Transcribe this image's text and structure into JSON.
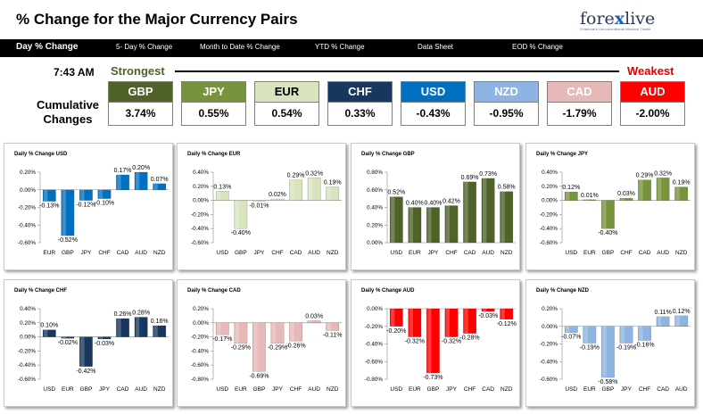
{
  "header": {
    "title": "% Change for the Major Currency Pairs",
    "logo_brand_pre": "fore",
    "logo_brand_x": "x",
    "logo_brand_post": "live",
    "logo_tag": "Financial's Unconventional Wisdom Trader"
  },
  "nav": [
    {
      "label": "Day % Change",
      "active": true
    },
    {
      "label": "5- Day % Change",
      "active": false
    },
    {
      "label": "Month to Date % Change",
      "active": false
    },
    {
      "label": "YTD % Change",
      "active": false
    },
    {
      "label": "Data Sheet",
      "active": false
    },
    {
      "label": "EOD % Change",
      "active": false
    }
  ],
  "summary": {
    "time": "7:43 AM",
    "strongest_label": "Strongest",
    "weakest_label": "Weakest",
    "cumulative_label_line1": "Cumulative",
    "cumulative_label_line2": "Changes",
    "currencies": [
      {
        "code": "GBP",
        "value": "3.74%",
        "bg": "#4f6228",
        "fg": "#ffffff"
      },
      {
        "code": "JPY",
        "value": "0.55%",
        "bg": "#77933c",
        "fg": "#ffffff"
      },
      {
        "code": "EUR",
        "value": "0.54%",
        "bg": "#d7e4bd",
        "fg": "#000000"
      },
      {
        "code": "CHF",
        "value": "0.33%",
        "bg": "#17375e",
        "fg": "#ffffff"
      },
      {
        "code": "USD",
        "value": "-0.43%",
        "bg": "#0070c0",
        "fg": "#ffffff"
      },
      {
        "code": "NZD",
        "value": "-0.95%",
        "bg": "#8db4e2",
        "fg": "#ffffff"
      },
      {
        "code": "CAD",
        "value": "-1.79%",
        "bg": "#e6b9b8",
        "fg": "#ffffff"
      },
      {
        "code": "AUD",
        "value": "-2.00%",
        "bg": "#ff0000",
        "fg": "#ffffff"
      }
    ]
  },
  "chart_data": [
    {
      "type": "bar",
      "title": "Daily % Change USD",
      "categories": [
        "EUR",
        "GBP",
        "JPY",
        "CHF",
        "CAD",
        "AUD",
        "NZD"
      ],
      "values": [
        -0.13,
        -0.52,
        -0.12,
        -0.1,
        0.17,
        0.2,
        0.07
      ],
      "labels": [
        "-0.13%",
        "-0.52%",
        "-0.12%",
        "-0.10%",
        "0.17%",
        "0.20%",
        "0.07%"
      ],
      "ylim": [
        -0.6,
        0.2
      ],
      "yticks": [
        "0.20%",
        "0.00%",
        "-0.20%",
        "-0.40%",
        "-0.60%"
      ],
      "colors": [
        "#0070c0",
        "#0070c0",
        "#0070c0",
        "#0070c0",
        "#0070c0",
        "#0070c0",
        "#0070c0"
      ]
    },
    {
      "type": "bar",
      "title": "Daily % Change EUR",
      "categories": [
        "USD",
        "GBP",
        "JPY",
        "CHF",
        "CAD",
        "AUD",
        "NZD"
      ],
      "values": [
        0.13,
        -0.4,
        -0.01,
        0.02,
        0.29,
        0.32,
        0.19
      ],
      "labels": [
        "0.13%",
        "-0.40%",
        "-0.01%",
        "0.02%",
        "0.29%",
        "0.32%",
        "0.19%"
      ],
      "ylim": [
        -0.6,
        0.4
      ],
      "yticks": [
        "0.40%",
        "0.20%",
        "0.00%",
        "-0.20%",
        "-0.40%",
        "-0.60%"
      ],
      "colors": [
        "#d7e4bd",
        "#d7e4bd",
        "#d7e4bd",
        "#d7e4bd",
        "#d7e4bd",
        "#d7e4bd",
        "#d7e4bd"
      ]
    },
    {
      "type": "bar",
      "title": "Daily % Change GBP",
      "categories": [
        "USD",
        "EUR",
        "JPY",
        "CHF",
        "CAD",
        "AUD",
        "NZD"
      ],
      "values": [
        0.52,
        0.4,
        0.4,
        0.42,
        0.69,
        0.73,
        0.58
      ],
      "labels": [
        "0.52%",
        "0.40%",
        "0.40%",
        "0.42%",
        "0.69%",
        "0.73%",
        "0.58%"
      ],
      "ylim": [
        0,
        0.8
      ],
      "yticks": [
        "0.80%",
        "0.60%",
        "0.40%",
        "0.20%",
        "0.00%"
      ],
      "colors": [
        "#4f6228",
        "#4f6228",
        "#4f6228",
        "#4f6228",
        "#4f6228",
        "#4f6228",
        "#4f6228"
      ]
    },
    {
      "type": "bar",
      "title": "Daily % Change JPY",
      "categories": [
        "USD",
        "EUR",
        "GBP",
        "CHF",
        "CAD",
        "AUD",
        "NZD"
      ],
      "values": [
        0.12,
        0.01,
        -0.4,
        0.03,
        0.29,
        0.32,
        0.19
      ],
      "labels": [
        "0.12%",
        "0.01%",
        "-0.40%",
        "0.03%",
        "0.29%",
        "0.32%",
        "0.19%"
      ],
      "ylim": [
        -0.6,
        0.4
      ],
      "yticks": [
        "0.40%",
        "0.20%",
        "0.00%",
        "-0.20%",
        "-0.40%",
        "-0.60%"
      ],
      "colors": [
        "#77933c",
        "#77933c",
        "#77933c",
        "#77933c",
        "#77933c",
        "#77933c",
        "#77933c"
      ]
    },
    {
      "type": "bar",
      "title": "Daily % Change CHF",
      "categories": [
        "USD",
        "EUR",
        "GBP",
        "JPY",
        "CAD",
        "AUD",
        "NZD"
      ],
      "values": [
        0.1,
        -0.02,
        -0.42,
        -0.03,
        0.26,
        0.28,
        0.16
      ],
      "labels": [
        "0.10%",
        "-0.02%",
        "-0.42%",
        "-0.03%",
        "0.26%",
        "0.28%",
        "0.16%"
      ],
      "ylim": [
        -0.6,
        0.4
      ],
      "yticks": [
        "0.40%",
        "0.20%",
        "0.00%",
        "-0.20%",
        "-0.40%",
        "-0.60%"
      ],
      "colors": [
        "#17375e",
        "#17375e",
        "#17375e",
        "#17375e",
        "#17375e",
        "#17375e",
        "#17375e"
      ]
    },
    {
      "type": "bar",
      "title": "Daily % Change CAD",
      "categories": [
        "USD",
        "EUR",
        "GBP",
        "JPY",
        "CHF",
        "AUD",
        "NZD"
      ],
      "values": [
        -0.17,
        -0.29,
        -0.69,
        -0.29,
        -0.26,
        0.03,
        -0.11
      ],
      "labels": [
        "-0.17%",
        "-0.29%",
        "-0.69%",
        "-0.29%",
        "-0.26%",
        "0.03%",
        "-0.11%"
      ],
      "ylim": [
        -0.8,
        0.2
      ],
      "yticks": [
        "0.20%",
        "0.00%",
        "-0.20%",
        "-0.40%",
        "-0.60%",
        "-0.80%"
      ],
      "colors": [
        "#e6b9b8",
        "#e6b9b8",
        "#e6b9b8",
        "#e6b9b8",
        "#e6b9b8",
        "#e6b9b8",
        "#e6b9b8"
      ]
    },
    {
      "type": "bar",
      "title": "Daily % Change AUD",
      "categories": [
        "USD",
        "EUR",
        "GBP",
        "JPY",
        "CHF",
        "CAD",
        "NZD"
      ],
      "values": [
        -0.2,
        -0.32,
        -0.73,
        -0.32,
        -0.28,
        -0.03,
        -0.12
      ],
      "labels": [
        "-0.20%",
        "-0.32%",
        "-0.73%",
        "-0.32%",
        "-0.28%",
        "-0.03%",
        "-0.12%"
      ],
      "ylim": [
        -0.8,
        0
      ],
      "yticks": [
        "0.00%",
        "-0.20%",
        "-0.40%",
        "-0.60%",
        "-0.80%"
      ],
      "colors": [
        "#ff0000",
        "#ff0000",
        "#ff0000",
        "#ff0000",
        "#ff0000",
        "#ff0000",
        "#ff0000"
      ]
    },
    {
      "type": "bar",
      "title": "Daily % Change NZD",
      "categories": [
        "USD",
        "EUR",
        "GBP",
        "JPY",
        "CHF",
        "CAD",
        "AUD"
      ],
      "values": [
        -0.07,
        -0.19,
        -0.58,
        -0.19,
        -0.16,
        0.11,
        0.12
      ],
      "labels": [
        "-0.07%",
        "-0.19%",
        "-0.58%",
        "-0.19%",
        "-0.16%",
        "0.11%",
        "0.12%"
      ],
      "ylim": [
        -0.6,
        0.2
      ],
      "yticks": [
        "0.20%",
        "0.00%",
        "-0.20%",
        "-0.40%",
        "-0.60%"
      ],
      "colors": [
        "#8db4e2",
        "#8db4e2",
        "#8db4e2",
        "#8db4e2",
        "#8db4e2",
        "#8db4e2",
        "#8db4e2"
      ]
    }
  ]
}
